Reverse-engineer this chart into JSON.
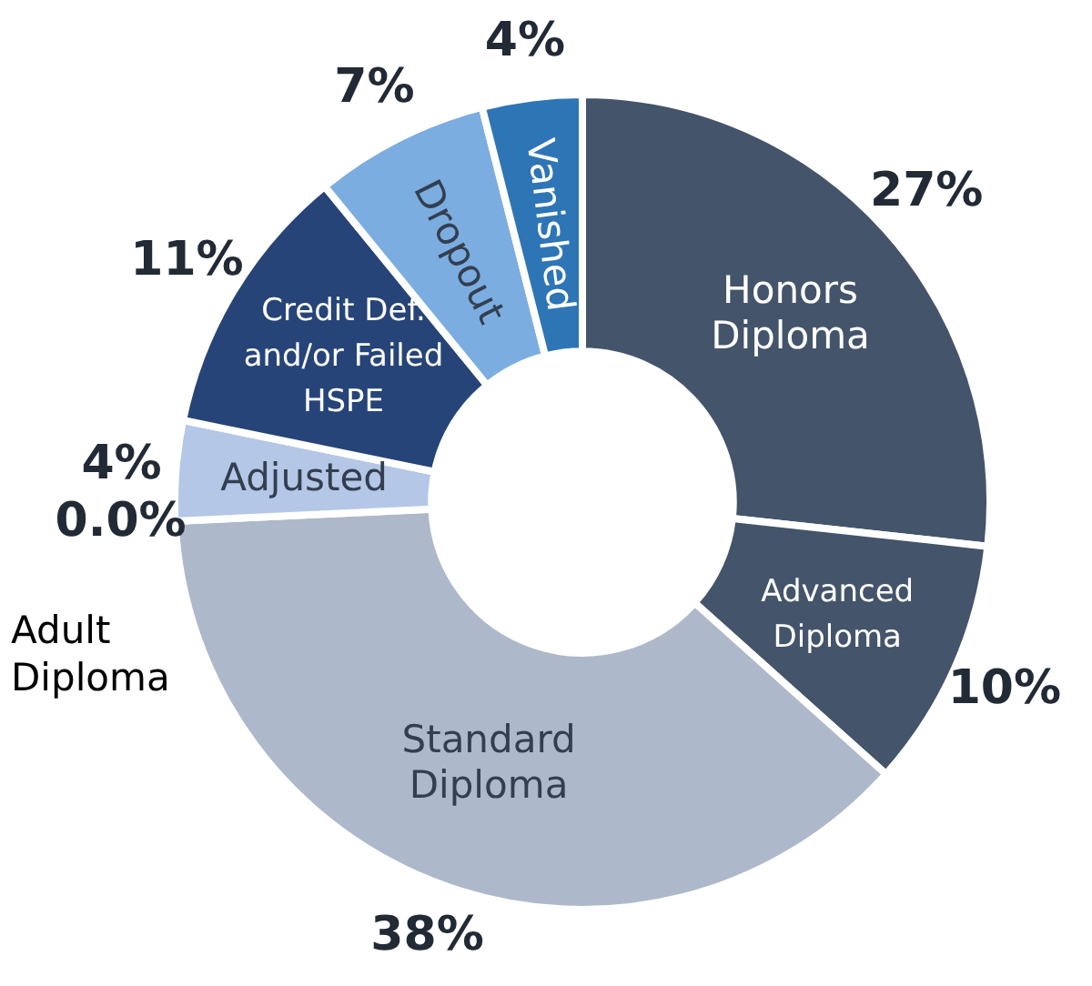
{
  "chart_data": {
    "type": "donut",
    "categories": [
      "Honors Diploma",
      "Advanced Diploma",
      "Standard Diploma",
      "Adult Diploma",
      "Adjusted",
      "Credit Def. and/or Failed HSPE",
      "Dropout",
      "Vanished"
    ],
    "values": [
      27,
      10,
      38,
      0,
      4,
      11,
      7,
      4
    ],
    "value_labels": [
      "27%",
      "10%",
      "38%",
      "0.0%",
      "4%",
      "11%",
      "7%",
      "4%"
    ],
    "colors": [
      "#44546a",
      "#44546a",
      "#adb9ca",
      "#a5a5a5",
      "#b4c7e7",
      "#264478",
      "#7cade0",
      "#2e75b6"
    ],
    "legend": false
  }
}
